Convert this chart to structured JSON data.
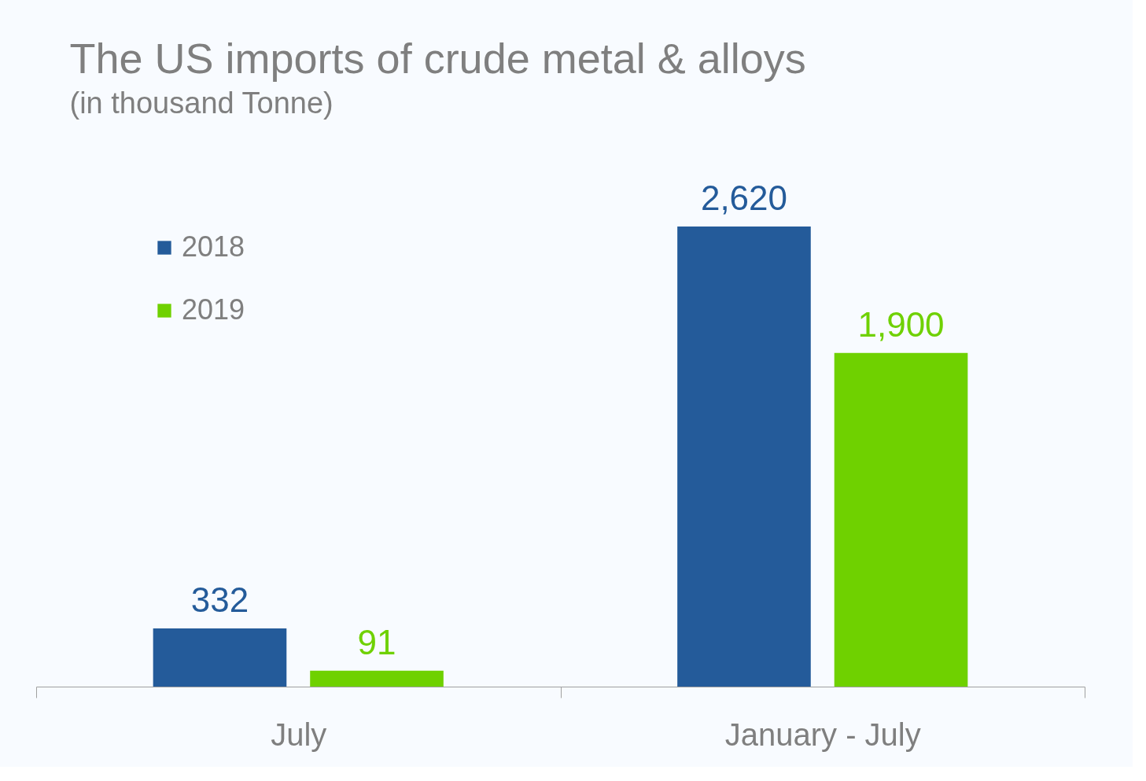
{
  "chart_data": {
    "type": "bar",
    "title": "The US imports of crude metal & alloys",
    "subtitle": "(in thousand Tonne)",
    "categories": [
      "July",
      "January - July"
    ],
    "series": [
      {
        "name": "2018",
        "color": "#245b9a",
        "values": [
          332,
          2620
        ],
        "value_labels": [
          "332",
          "2,620"
        ]
      },
      {
        "name": "2019",
        "color": "#6fd100",
        "values": [
          91,
          1900
        ],
        "value_labels": [
          "91",
          "1,900"
        ]
      }
    ],
    "legend": "top left",
    "grid": false
  }
}
